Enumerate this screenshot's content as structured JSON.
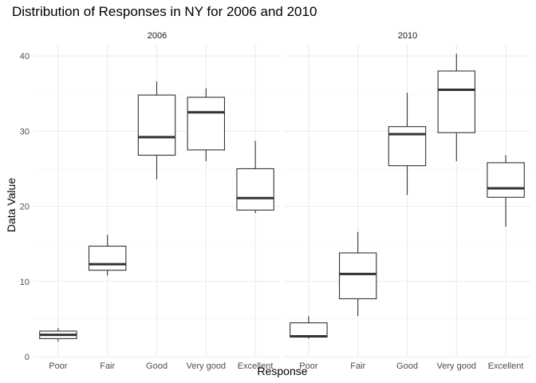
{
  "chart_data": {
    "type": "boxplot",
    "title": "Distribution of Responses in NY for 2006 and 2010",
    "xlabel": "Response",
    "ylabel": "Data Value",
    "ylim": [
      0,
      41.5
    ],
    "yticks": [
      0,
      10,
      20,
      30,
      40
    ],
    "categories": [
      "Poor",
      "Fair",
      "Good",
      "Very good",
      "Excellent"
    ],
    "grid": true,
    "panels": [
      {
        "name": "2006",
        "boxes": [
          {
            "category": "Poor",
            "min": 2.0,
            "q1": 2.4,
            "median": 2.9,
            "q3": 3.4,
            "max": 3.8
          },
          {
            "category": "Fair",
            "min": 10.8,
            "q1": 11.5,
            "median": 12.3,
            "q3": 14.7,
            "max": 16.2
          },
          {
            "category": "Good",
            "min": 23.6,
            "q1": 26.8,
            "median": 29.2,
            "q3": 34.8,
            "max": 36.6
          },
          {
            "category": "Very good",
            "min": 26.0,
            "q1": 27.5,
            "median": 32.5,
            "q3": 34.5,
            "max": 35.7
          },
          {
            "category": "Excellent",
            "min": 19.1,
            "q1": 19.5,
            "median": 21.1,
            "q3": 25.0,
            "max": 28.7
          }
        ]
      },
      {
        "name": "2010",
        "boxes": [
          {
            "category": "Poor",
            "min": 2.4,
            "q1": 2.6,
            "median": 2.7,
            "q3": 4.5,
            "max": 5.4
          },
          {
            "category": "Fair",
            "min": 5.4,
            "q1": 7.7,
            "median": 11.0,
            "q3": 13.8,
            "max": 16.6
          },
          {
            "category": "Good",
            "min": 21.5,
            "q1": 25.4,
            "median": 29.6,
            "q3": 30.6,
            "max": 35.1
          },
          {
            "category": "Very good",
            "min": 26.0,
            "q1": 29.8,
            "median": 35.5,
            "q3": 38.0,
            "max": 40.3
          },
          {
            "category": "Excellent",
            "min": 17.3,
            "q1": 21.2,
            "median": 22.4,
            "q3": 25.8,
            "max": 26.8
          }
        ]
      }
    ]
  }
}
